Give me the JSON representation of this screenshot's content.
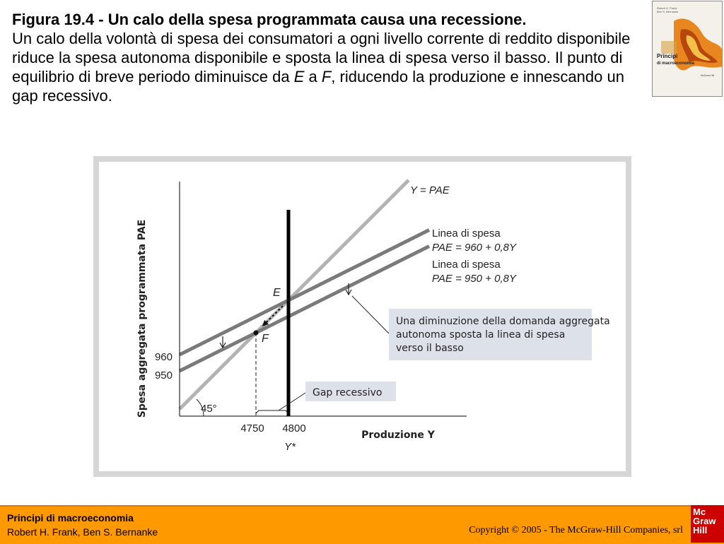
{
  "caption": {
    "title": "Figura 19.4 - Un calo della spesa programmata causa una recessione.",
    "text_1": "Un calo della volontà di spesa dei consumatori a ogni livello corrente di reddito disponibile riduce la spesa autonoma disponibile e sposta la linea di spesa verso il basso. Il punto di equilibrio di breve periodo diminuisce da ",
    "point_e": "E",
    "text_2": " a ",
    "point_f": "F",
    "text_3": ", riducendo la produzione e innescando un gap recessivo."
  },
  "book_cover": {
    "authors": "Robert H. Frank\nBen S. Bernanke",
    "title_line1": "Principi",
    "title_line2": "di macroeconomia",
    "publisher": "McGraw-Hill",
    "colors": {
      "background": "#f4f1ea",
      "flame": "#e8861f",
      "flame_dark": "#b8460f",
      "flame_light": "#f5c04a"
    }
  },
  "chart_data": {
    "type": "line",
    "ylabel": "Spesa aggregata programmata PAE",
    "xlabel": "Produzione Y",
    "x_ticks": [
      "4750",
      "4800"
    ],
    "x_tick_values": [
      4750,
      4800
    ],
    "y_ticks": [
      "960",
      "950"
    ],
    "y_tick_values": [
      960,
      950
    ],
    "potential_output_label": "Y*",
    "potential_output": 4800,
    "angle_label": "45°",
    "series": [
      {
        "name": "Y = PAE",
        "intercept": 0,
        "slope": 1,
        "color": "#b3b3b3"
      },
      {
        "name": "Linea di spesa PAE = 960 + 0,8Y",
        "label_line1": "Linea di spesa",
        "label_line2": "PAE = 960 + 0,8Y",
        "intercept": 960,
        "slope": 0.8,
        "color": "#7a7a7a"
      },
      {
        "name": "Linea di spesa PAE = 950 + 0,8Y",
        "label_line1": "Linea di spesa",
        "label_line2": "PAE = 950 + 0,8Y",
        "intercept": 950,
        "slope": 0.8,
        "color": "#7a7a7a"
      }
    ],
    "points": [
      {
        "label": "E",
        "x": 4800,
        "y": 4800
      },
      {
        "label": "F",
        "x": 4750,
        "y": 4750
      }
    ],
    "annotations": {
      "shift_note": "Una diminuzione della domanda aggregata autonoma sposta la linea di spesa verso il basso",
      "gap_note": "Gap recessivo"
    },
    "colors": {
      "annotation_box": "#dde1ea",
      "potential_output_line": "#000000"
    }
  },
  "footer": {
    "book": "Principi di macroeconomia",
    "authors": "Robert H. Frank, Ben S. Bernanke",
    "copyright": "Copyright © 2005 - The McGraw-Hill Companies, srl",
    "logo_line1": "Mc",
    "logo_line2": "Graw",
    "logo_line3": "Hill",
    "colors": {
      "background": "#ff9900",
      "logo": "#cc0000"
    }
  }
}
